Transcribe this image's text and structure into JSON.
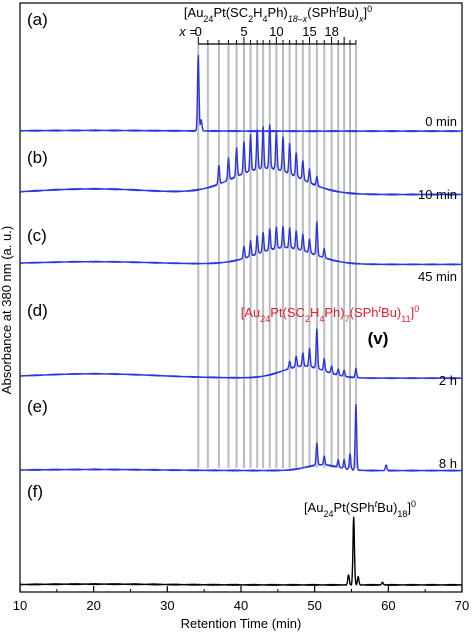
{
  "chart_data": {
    "type": "line",
    "xlabel": "Retention Time (min)",
    "ylabel": "Absorbance at 380 nm (a. u.)",
    "xlim": [
      10,
      70
    ],
    "x_ticks": [
      10,
      20,
      30,
      40,
      50,
      60,
      70
    ],
    "top_formula": {
      "pre": "[Au",
      "s1": "24",
      "mid1": "Pt(SC",
      "s2": "2",
      "mid2": "H",
      "s3": "4",
      "mid3": "Ph)",
      "s4": "18–x",
      "mid4": "(SPh",
      "sup_t": "t",
      "mid5": "Bu)",
      "s5": "x",
      "end": "]",
      "sup_charge": "0"
    },
    "x_scale_label": "x =",
    "x_scale_ticks": [
      "0",
      "5",
      "10",
      "15",
      "18"
    ],
    "x_scale_retention_times": [
      34.2,
      35.5,
      37.0,
      38.3,
      39.4,
      40.4,
      41.3,
      42.2,
      43.0,
      43.9,
      44.8,
      45.7,
      46.6,
      47.5,
      48.4,
      49.3,
      50.3,
      51.3,
      52.3,
      53.2,
      54.0,
      54.8,
      55.6
    ],
    "red_formula": {
      "pre": "[Au",
      "s1": "24",
      "mid1": "Pt(SC",
      "s2": "2",
      "mid2": "H",
      "s3": "4",
      "mid3": "Ph)",
      "s4": "7",
      "mid4": "(SPh",
      "sup_t": "t",
      "mid5": "Bu)",
      "s5": "11",
      "end": "]",
      "sup_charge": "0"
    },
    "red_label_mark": "(v)",
    "black_formula": {
      "pre": "[Au",
      "s1": "24",
      "mid1": "Pt(SPh",
      "sup_t": "t",
      "mid2": "Bu)",
      "s2": "18",
      "end": "]",
      "sup_charge": "0"
    },
    "panels": [
      {
        "label": "(a)",
        "time": "0 min",
        "color": "#2a35e0",
        "baseline": 0.03,
        "hump": null,
        "peaks": [
          [
            34.2,
            1.0
          ],
          [
            34.6,
            0.15
          ]
        ]
      },
      {
        "label": "(b)",
        "time": "10 min",
        "color": "#2a35e0",
        "baseline": 0.25,
        "hump": [
          43.5,
          6.5,
          0.35
        ],
        "peaks": [
          [
            37.0,
            0.25
          ],
          [
            38.3,
            0.3
          ],
          [
            39.4,
            0.38
          ],
          [
            40.4,
            0.42
          ],
          [
            41.3,
            0.48
          ],
          [
            42.2,
            0.52
          ],
          [
            43.0,
            0.55
          ],
          [
            43.9,
            0.58
          ],
          [
            44.8,
            0.5
          ],
          [
            45.7,
            0.45
          ],
          [
            46.6,
            0.4
          ],
          [
            47.5,
            0.32
          ],
          [
            48.4,
            0.25
          ],
          [
            49.3,
            0.18
          ],
          [
            50.3,
            0.12
          ]
        ]
      },
      {
        "label": "(c)",
        "time": "45 min",
        "color": "#2a35e0",
        "baseline": 0.15,
        "hump": [
          46.0,
          5.5,
          0.28
        ],
        "peaks": [
          [
            40.4,
            0.2
          ],
          [
            41.3,
            0.25
          ],
          [
            42.2,
            0.3
          ],
          [
            43.0,
            0.32
          ],
          [
            43.9,
            0.35
          ],
          [
            44.8,
            0.36
          ],
          [
            45.7,
            0.35
          ],
          [
            46.6,
            0.33
          ],
          [
            47.5,
            0.3
          ],
          [
            48.4,
            0.27
          ],
          [
            49.3,
            0.22
          ],
          [
            50.3,
            0.55
          ],
          [
            51.3,
            0.15
          ]
        ]
      },
      {
        "label": "(d)",
        "time": "2 h",
        "color": "#2a35e0",
        "baseline": 0.12,
        "hump": [
          48.5,
          4.0,
          0.2
        ],
        "peaks": [
          [
            46.6,
            0.12
          ],
          [
            47.5,
            0.18
          ],
          [
            48.4,
            0.22
          ],
          [
            49.3,
            0.3
          ],
          [
            50.3,
            0.65
          ],
          [
            51.3,
            0.2
          ],
          [
            52.3,
            0.12
          ],
          [
            53.2,
            0.1
          ],
          [
            54.0,
            0.1
          ],
          [
            55.6,
            0.15
          ]
        ]
      },
      {
        "label": "(e)",
        "time": "8 h",
        "color": "#2a35e0",
        "baseline": 0.05,
        "hump": [
          51.0,
          3.0,
          0.08
        ],
        "peaks": [
          [
            50.3,
            0.3
          ],
          [
            51.3,
            0.12
          ],
          [
            53.2,
            0.1
          ],
          [
            54.0,
            0.12
          ],
          [
            54.8,
            0.22
          ],
          [
            55.6,
            0.9
          ],
          [
            59.7,
            0.08
          ]
        ]
      },
      {
        "label": "(f)",
        "time": "",
        "color": "#000000",
        "baseline": 0.04,
        "hump": null,
        "peaks": [
          [
            54.6,
            0.15
          ],
          [
            55.3,
            1.0
          ],
          [
            55.9,
            0.12
          ],
          [
            59.2,
            0.04
          ]
        ]
      }
    ]
  }
}
